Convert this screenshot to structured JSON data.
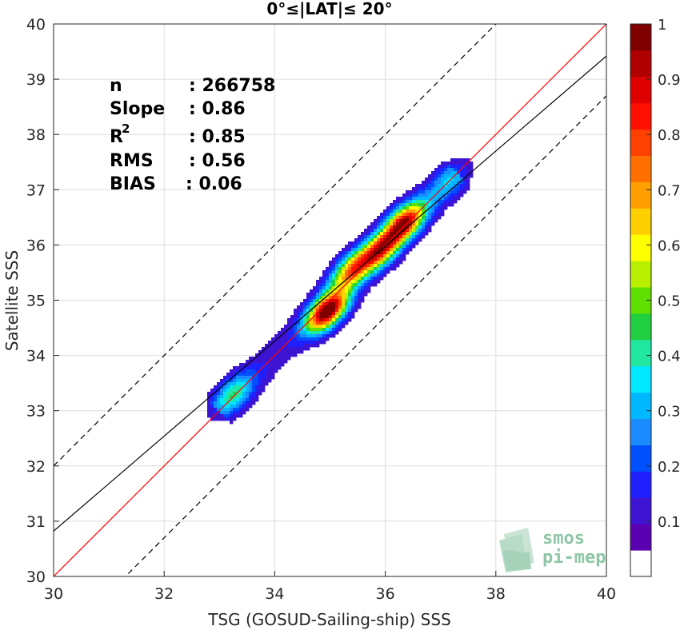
{
  "chart_data": {
    "type": "contour-density",
    "title": "0°≤|LAT|≤ 20°",
    "xlabel": "TSG (GOSUD-Sailing-ship) SSS",
    "ylabel": "Satellite SSS",
    "xlim": [
      30,
      40
    ],
    "ylim": [
      30,
      40
    ],
    "xticks": [
      "30",
      "32",
      "34",
      "36",
      "38",
      "40"
    ],
    "yticks": [
      "30",
      "31",
      "32",
      "33",
      "34",
      "35",
      "36",
      "37",
      "38",
      "39",
      "40"
    ],
    "grid": true,
    "stats": [
      {
        "label": "n",
        "value": ": 266758"
      },
      {
        "label": "Slope",
        "value": ": 0.86"
      },
      {
        "label": "R",
        "sup": "2",
        "value": ": 0.85"
      },
      {
        "label": "RMS",
        "value": ": 0.56"
      },
      {
        "label": "BIAS",
        "value": ": 0.06"
      }
    ],
    "lines": {
      "identity": {
        "slope": 1,
        "intercept": 0,
        "color": "#ff0000"
      },
      "fit": {
        "slope": 0.86,
        "intercept": 5.02,
        "color": "#000000"
      },
      "offset_upper": {
        "slope": 1,
        "intercept": 2,
        "color": "#000000",
        "dashed": true
      },
      "offset_lower": {
        "slope": 1,
        "intercept": -1.3,
        "color": "#000000",
        "dashed": true
      }
    },
    "density_peaks": [
      {
        "x": 34.95,
        "y": 34.8,
        "level": 1.0
      },
      {
        "x": 36.35,
        "y": 36.4,
        "level": 0.85
      },
      {
        "x": 35.9,
        "y": 35.9,
        "level": 0.7
      },
      {
        "x": 35.4,
        "y": 35.55,
        "level": 0.62
      },
      {
        "x": 33.25,
        "y": 33.3,
        "level": 0.32
      },
      {
        "x": 37.15,
        "y": 37.15,
        "level": 0.22
      }
    ],
    "colorbar": {
      "ticks": [
        "0.1",
        "0.2",
        "0.3",
        "0.4",
        "0.5",
        "0.6",
        "0.7",
        "0.8",
        "0.9",
        "1"
      ],
      "colors": [
        "#ffffff",
        "#5a00b0",
        "#3d14d4",
        "#2020ff",
        "#0050ff",
        "#1a8cff",
        "#00b8ff",
        "#00e8ff",
        "#20e8a0",
        "#20d040",
        "#60e000",
        "#b8f000",
        "#ffff00",
        "#ffd000",
        "#ffa000",
        "#ff7000",
        "#ff4000",
        "#ff1000",
        "#e00000",
        "#b00000",
        "#800000"
      ]
    }
  },
  "logo": {
    "line1": "smos",
    "line2": "pi-mep"
  }
}
